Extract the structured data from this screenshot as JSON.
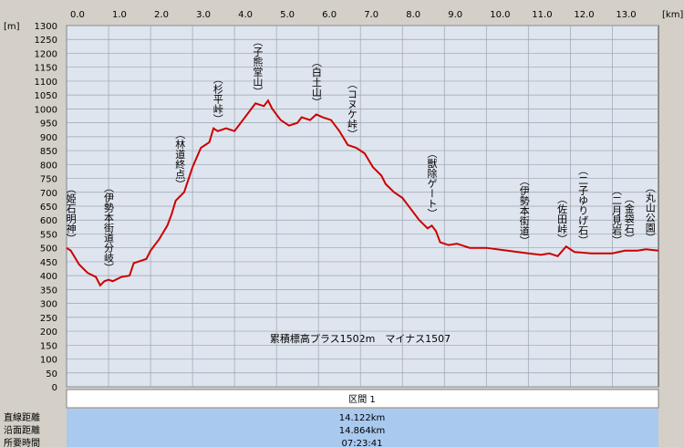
{
  "chart_data": {
    "type": "line",
    "x_unit": "[km]",
    "y_unit": "[m]",
    "xlim": [
      0,
      14.1
    ],
    "ylim": [
      0,
      1300
    ],
    "xticks": [
      {
        "value": 0,
        "label": "0.0"
      },
      {
        "value": 1,
        "label": "1.0"
      },
      {
        "value": 2,
        "label": "2.0"
      },
      {
        "value": 3,
        "label": "3.0"
      },
      {
        "value": 4,
        "label": "4.0"
      },
      {
        "value": 5,
        "label": "5.0"
      },
      {
        "value": 6,
        "label": "6.0"
      },
      {
        "value": 7,
        "label": "7.0"
      },
      {
        "value": 8,
        "label": "8.0"
      },
      {
        "value": 9,
        "label": "9.0"
      },
      {
        "value": 10,
        "label": "10.0"
      },
      {
        "value": 11,
        "label": "11.0"
      },
      {
        "value": 12,
        "label": "12.0"
      },
      {
        "value": 13,
        "label": "13.0"
      }
    ],
    "yticks": [
      0,
      50,
      100,
      150,
      200,
      250,
      300,
      350,
      400,
      450,
      500,
      550,
      600,
      650,
      700,
      750,
      800,
      850,
      900,
      950,
      1000,
      1050,
      1100,
      1150,
      1200,
      1250,
      1300
    ],
    "grid": true,
    "color": "#cc0000",
    "x": [
      0,
      0.1,
      0.3,
      0.5,
      0.7,
      0.8,
      0.9,
      1.0,
      1.1,
      1.3,
      1.5,
      1.6,
      1.8,
      1.9,
      2.0,
      2.2,
      2.4,
      2.5,
      2.6,
      2.8,
      3.0,
      3.2,
      3.4,
      3.5,
      3.6,
      3.8,
      4.0,
      4.2,
      4.4,
      4.5,
      4.7,
      4.8,
      4.9,
      5.1,
      5.3,
      5.5,
      5.6,
      5.8,
      5.95,
      6.1,
      6.3,
      6.5,
      6.7,
      6.9,
      7.1,
      7.3,
      7.5,
      7.6,
      7.8,
      8.0,
      8.2,
      8.4,
      8.6,
      8.7,
      8.8,
      8.9,
      9.1,
      9.3,
      9.6,
      10.0,
      10.5,
      11.0,
      11.3,
      11.5,
      11.7,
      11.9,
      12.1,
      12.5,
      13.0,
      13.3,
      13.6,
      13.8,
      14.1
    ],
    "values": [
      500,
      490,
      440,
      410,
      395,
      365,
      380,
      385,
      380,
      395,
      400,
      445,
      455,
      460,
      490,
      530,
      580,
      620,
      670,
      700,
      790,
      860,
      880,
      930,
      920,
      930,
      920,
      960,
      1000,
      1020,
      1010,
      1030,
      1000,
      960,
      940,
      950,
      970,
      960,
      980,
      970,
      960,
      920,
      870,
      860,
      840,
      790,
      760,
      730,
      700,
      680,
      640,
      600,
      570,
      580,
      560,
      520,
      510,
      515,
      500,
      500,
      490,
      480,
      475,
      480,
      470,
      505,
      485,
      480,
      480,
      490,
      490,
      495,
      490
    ],
    "annotations": [
      {
        "text": "（姫石明神）",
        "x": 0.1
      },
      {
        "text": "（伊勢本街道分岐）",
        "x": 1.0
      },
      {
        "text": "（林道終点）",
        "x": 2.7
      },
      {
        "text": "（杉平峠）",
        "x": 3.6
      },
      {
        "text": "（子熊堂山）",
        "x": 4.55
      },
      {
        "text": "（白土山）",
        "x": 5.95
      },
      {
        "text": "（コヌケ峠）",
        "x": 6.8
      },
      {
        "text": "（獣除ゲート）",
        "x": 8.7
      },
      {
        "text": "（伊勢本街道）",
        "x": 10.9
      },
      {
        "text": "（佐田峠）",
        "x": 11.8
      },
      {
        "text": "（二子ゆりげ石）",
        "x": 12.3
      },
      {
        "text": "（二月見岩）",
        "x": 13.1
      },
      {
        "text": "（金袋石）",
        "x": 13.4
      },
      {
        "text": "（丸山公園）",
        "x": 13.9
      }
    ],
    "summary": "累積標高プラス1502m　マイナス1507"
  },
  "table": {
    "header": "区間 1",
    "rows": [
      [
        "直線距離",
        "14.122km"
      ],
      [
        "沿面距離",
        "14.864km"
      ],
      [
        "所要時間",
        "07:23:41"
      ]
    ]
  }
}
